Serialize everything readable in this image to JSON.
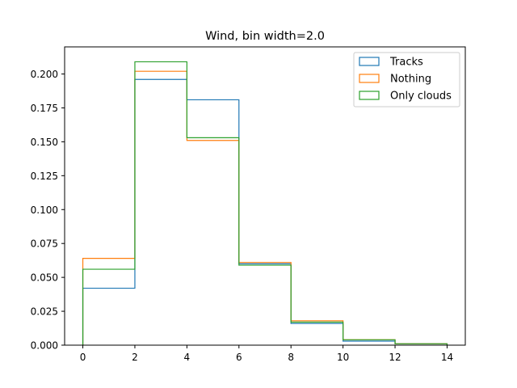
{
  "chart_data": {
    "type": "histogram",
    "title": "Wind, bin width=2.0",
    "xlabel": "",
    "ylabel": "",
    "bin_edges": [
      0,
      2,
      4,
      6,
      8,
      10,
      12,
      14
    ],
    "xlim": [
      -0.7,
      14.7
    ],
    "ylim": [
      0,
      0.22
    ],
    "xticks": [
      0,
      2,
      4,
      6,
      8,
      10,
      12,
      14
    ],
    "xtick_labels": [
      "0",
      "2",
      "4",
      "6",
      "8",
      "10",
      "12",
      "14"
    ],
    "yticks": [
      0.0,
      0.025,
      0.05,
      0.075,
      0.1,
      0.125,
      0.15,
      0.175,
      0.2
    ],
    "ytick_labels": [
      "0.000",
      "0.025",
      "0.050",
      "0.075",
      "0.100",
      "0.125",
      "0.150",
      "0.175",
      "0.200"
    ],
    "grid": false,
    "legend_position": "top-right",
    "histtype": "step",
    "series": [
      {
        "name": "Tracks",
        "color": "#1f77b4",
        "values": [
          0.042,
          0.196,
          0.181,
          0.06,
          0.016,
          0.003,
          0.001
        ]
      },
      {
        "name": "Nothing",
        "color": "#ff7f0e",
        "values": [
          0.064,
          0.202,
          0.151,
          0.061,
          0.018,
          0.004,
          0.001
        ]
      },
      {
        "name": "Only clouds",
        "color": "#2ca02c",
        "values": [
          0.056,
          0.209,
          0.153,
          0.059,
          0.017,
          0.004,
          0.001
        ]
      }
    ]
  }
}
